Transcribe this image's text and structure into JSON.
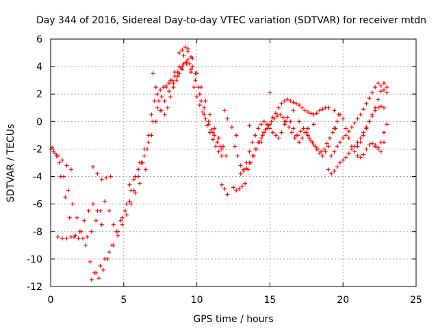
{
  "chart_data": {
    "type": "scatter",
    "title": "Day 344 of 2016, Sidereal Day-to-day VTEC variation (SDTVAR) for receiver mtdn",
    "xlabel": "GPS time / hours",
    "ylabel": "SDTVAR / TECUs",
    "xlim": [
      0,
      25
    ],
    "ylim": [
      -12,
      6
    ],
    "x_ticks": [
      "0",
      "5",
      "10",
      "15",
      "20",
      "25"
    ],
    "y_ticks": [
      "-12",
      "-10",
      "-8",
      "-6",
      "-4",
      "-2",
      "0",
      "2",
      "4",
      "6"
    ],
    "grid": true,
    "marker": "plus",
    "color": "#ff0000",
    "series": [
      {
        "x": [
          0.0,
          0.3,
          0.6,
          0.9,
          1.2,
          1.5,
          1.8,
          2.1,
          2.4,
          2.7,
          3.0,
          3.3,
          3.6,
          3.9,
          4.2,
          4.5,
          4.8,
          5.1,
          5.4,
          5.7,
          6.0,
          6.3,
          6.6,
          6.9,
          7.2,
          7.5,
          7.8,
          8.1,
          8.4,
          8.7,
          9.0,
          9.3,
          9.6,
          9.9,
          10.2,
          10.5,
          10.8,
          11.1,
          11.4,
          11.7,
          12.0
        ],
        "y": [
          -2.0,
          -2.3,
          -3.0,
          -4.0,
          -5.0,
          -6.0,
          -7.0,
          -8.0,
          -9.0,
          -10.2,
          -11.0,
          -11.4,
          -10.8,
          -10.0,
          -9.0,
          -8.0,
          -7.2,
          -6.5,
          -5.8,
          -5.0,
          -4.0,
          -3.0,
          -2.0,
          -1.0,
          0.0,
          0.8,
          1.5,
          2.2,
          2.8,
          3.3,
          3.8,
          4.2,
          3.8,
          3.0,
          2.0,
          1.0,
          0.0,
          -0.8,
          -1.5,
          -2.0,
          -2.5
        ]
      },
      {
        "x": [
          0.1,
          0.4,
          0.7,
          1.0,
          1.3,
          1.6,
          1.9,
          2.2,
          2.5,
          2.8,
          3.1,
          3.4,
          3.7,
          4.0,
          4.3,
          4.6,
          4.9,
          5.2,
          5.5,
          5.8,
          6.1,
          6.4,
          6.7,
          7.0,
          7.3,
          7.6,
          7.9,
          8.2,
          8.5,
          8.8,
          9.1,
          9.4,
          9.7,
          10.0,
          10.3,
          10.6,
          10.9,
          11.2,
          11.5,
          11.8
        ],
        "y": [
          -1.9,
          -2.5,
          -4.0,
          -5.5,
          -7.0,
          -8.4,
          -8.5,
          -8.5,
          -8.4,
          -8.0,
          -7.2,
          -6.5,
          -5.8,
          -6.5,
          -7.5,
          -8.0,
          -7.0,
          -6.0,
          -5.0,
          -4.0,
          -3.0,
          -2.0,
          -1.0,
          0.0,
          1.0,
          1.8,
          2.5,
          3.0,
          3.6,
          4.0,
          4.8,
          5.3,
          4.6,
          3.5,
          2.5,
          1.5,
          0.5,
          -0.5,
          -1.2,
          -1.8
        ]
      },
      {
        "x": [
          0.2,
          0.5,
          0.8,
          1.1,
          1.4
        ],
        "y": [
          -2.2,
          -2.5,
          -2.8,
          -3.2,
          -3.5
        ]
      },
      {
        "x": [
          2.9,
          3.2,
          3.5,
          3.8,
          4.1
        ],
        "y": [
          -3.3,
          -3.8,
          -4.2,
          -4.1,
          -4.0
        ]
      },
      {
        "x": [
          0.5,
          0.8,
          1.1,
          1.4,
          1.7,
          2.0,
          2.3,
          2.6,
          2.9,
          3.2,
          3.5
        ],
        "y": [
          -8.4,
          -8.5,
          -8.5,
          -8.4,
          -8.3,
          -8.0,
          -7.2,
          -6.5,
          -6.0,
          -6.5,
          -7.5
        ]
      },
      {
        "x": [
          2.8,
          3.1,
          3.4,
          3.7,
          4.0,
          4.3,
          4.6,
          4.9,
          5.2,
          5.5,
          5.8,
          6.1
        ],
        "y": [
          -11.5,
          -11.0,
          -10.5,
          -10.0,
          -9.5,
          -9.0,
          -8.3,
          -7.5,
          -6.8,
          -6.0,
          -5.2,
          -4.5
        ]
      },
      {
        "x": [
          6.5,
          6.7,
          6.9,
          7.1,
          7.3,
          7.5,
          7.7,
          7.9,
          8.1,
          8.3,
          8.5,
          8.7,
          8.9,
          9.1,
          9.3,
          9.5,
          9.7,
          9.9,
          10.1,
          10.3,
          10.5,
          10.7,
          10.9,
          11.1,
          11.3,
          11.5,
          11.7
        ],
        "y": [
          -3.5,
          -1.5,
          0.5,
          1.5,
          2.0,
          2.3,
          2.5,
          2.6,
          2.8,
          3.0,
          3.3,
          3.6,
          3.9,
          4.2,
          4.3,
          4.2,
          4.0,
          3.5,
          2.5,
          1.5,
          0.5,
          -0.3,
          -0.8,
          -1.3,
          -1.8,
          -2.2,
          -2.5
        ]
      },
      {
        "x": [
          7.0,
          7.2,
          7.4,
          7.6,
          7.8,
          8.0,
          8.2,
          8.4,
          8.6,
          8.8,
          9.0,
          9.2,
          9.4,
          9.6,
          9.8,
          10.0,
          10.2,
          10.4,
          10.6,
          10.8,
          11.0,
          11.2,
          11.4,
          11.6
        ],
        "y": [
          3.5,
          2.5,
          1.5,
          0.8,
          0.5,
          1.0,
          1.8,
          2.5,
          3.0,
          3.5,
          4.0,
          4.3,
          4.5,
          3.6,
          2.5,
          1.8,
          1.2,
          0.7,
          0.2,
          -0.2,
          -0.6,
          -1.0,
          -1.5,
          -1.8
        ]
      },
      {
        "x": [
          11.7,
          11.9,
          12.1
        ],
        "y": [
          -4.6,
          -4.9,
          -5.3
        ]
      },
      {
        "x": [
          11.9,
          12.1,
          12.4,
          12.7
        ],
        "y": [
          0.8,
          0.2,
          -0.4,
          -1.0
        ]
      },
      {
        "x": [
          12.5,
          12.7,
          12.9,
          13.1,
          13.3,
          13.5,
          13.7,
          13.9,
          14.1,
          14.3,
          14.5,
          14.7,
          14.9,
          15.1,
          15.3,
          15.5,
          15.7,
          15.9,
          16.1,
          16.3,
          16.5,
          16.7,
          16.9,
          17.1,
          17.3,
          17.5,
          17.7,
          17.9,
          18.1,
          18.3,
          18.5,
          18.7,
          18.9,
          19.1,
          19.3,
          19.5
        ],
        "y": [
          -4.8,
          -5.0,
          -4.9,
          -4.7,
          -4.5,
          -3.5,
          -3.0,
          -2.5,
          -2.0,
          -1.5,
          -1.0,
          -0.6,
          -0.3,
          0.0,
          0.2,
          0.4,
          0.5,
          0.3,
          0.0,
          -0.4,
          -0.8,
          -1.2,
          -1.0,
          -0.7,
          -0.5,
          -0.8,
          -1.2,
          -1.5,
          -1.8,
          -2.0,
          -2.2,
          -2.0,
          -1.6,
          -1.2,
          -0.8,
          -0.5
        ]
      },
      {
        "x": [
          12.6,
          12.8,
          13.0,
          13.2,
          13.4,
          13.6,
          13.8,
          14.0,
          14.2,
          14.4,
          14.6,
          14.8,
          15.0,
          15.2,
          15.4,
          15.6,
          15.8,
          16.0,
          16.2,
          16.4,
          16.6,
          16.8,
          17.0,
          17.2,
          17.4,
          17.6,
          17.8,
          18.0,
          18.2,
          18.4,
          18.6,
          18.8,
          19.0
        ],
        "y": [
          -1.8,
          -2.5,
          -3.2,
          -3.6,
          -3.4,
          -3.0,
          -2.5,
          -2.0,
          -1.5,
          -1.2,
          -0.8,
          -0.5,
          -0.2,
          0.3,
          0.6,
          1.0,
          1.3,
          1.5,
          1.6,
          1.5,
          1.4,
          1.3,
          1.2,
          1.0,
          0.8,
          0.7,
          0.6,
          0.5,
          0.6,
          0.8,
          0.9,
          1.0,
          1.0
        ]
      },
      {
        "x": [
          13.0,
          13.2,
          13.4,
          13.6,
          13.8,
          14.0,
          14.2,
          14.4,
          14.6,
          14.8,
          15.0,
          15.2,
          15.4,
          15.6,
          15.8,
          16.0,
          16.2,
          16.4,
          16.6,
          16.8,
          17.0,
          17.2,
          17.4,
          17.6,
          17.8,
          18.0,
          18.2,
          18.4,
          18.6,
          18.8,
          19.0
        ],
        "y": [
          -3.8,
          -3.5,
          -3.0,
          -2.2,
          -1.5,
          -1.0,
          -0.5,
          -0.2,
          0.0,
          -0.2,
          -0.5,
          -0.8,
          -1.0,
          -1.2,
          -0.8,
          -0.2,
          0.3,
          0.0,
          -0.5,
          -1.0,
          -1.5,
          -1.2,
          -0.8,
          -1.0,
          -1.4,
          -1.7,
          -2.0,
          -2.3,
          -2.5,
          -2.2,
          -1.8
        ]
      },
      {
        "x": [
          19.0,
          19.2,
          19.4,
          19.6,
          19.8,
          20.0,
          20.2,
          20.4,
          20.6,
          20.8,
          21.0,
          21.2,
          21.4,
          21.6,
          21.8,
          22.0,
          22.2,
          22.4,
          22.6,
          22.8
        ],
        "y": [
          -3.5,
          -3.8,
          -3.6,
          -3.3,
          -3.0,
          -2.8,
          -2.6,
          -2.3,
          -2.0,
          -1.8,
          -1.5,
          -1.2,
          -0.8,
          -0.4,
          0.0,
          0.4,
          0.8,
          1.0,
          1.1,
          1.0
        ]
      },
      {
        "x": [
          19.2,
          19.4,
          19.6,
          19.8,
          20.0,
          20.2,
          20.4,
          20.6,
          20.8,
          21.0,
          21.2,
          21.4,
          21.6,
          21.8,
          22.0,
          22.2,
          22.4,
          22.6,
          22.8,
          23.0
        ],
        "y": [
          -2.5,
          -2.2,
          -1.8,
          -1.5,
          -1.2,
          -1.0,
          -0.7,
          -0.4,
          -0.1,
          0.2,
          0.5,
          0.9,
          1.3,
          1.7,
          2.1,
          2.5,
          2.8,
          2.6,
          2.3,
          2.1
        ]
      },
      {
        "x": [
          19.4,
          19.6,
          19.8,
          20.0,
          20.2,
          20.4,
          20.6,
          20.8,
          21.0,
          21.2,
          21.4,
          21.6,
          21.8,
          22.0,
          22.2,
          22.4,
          22.6,
          22.8
        ],
        "y": [
          -0.5,
          0.0,
          0.5,
          0.2,
          -0.5,
          -1.2,
          -1.8,
          -2.2,
          -2.5,
          -2.6,
          -2.4,
          -2.0,
          -1.7,
          -1.6,
          -1.8,
          -2.0,
          -2.2,
          -1.5
        ]
      },
      {
        "x": [
          21.0,
          21.2,
          21.4,
          21.6,
          21.8,
          22.0,
          22.2,
          22.4,
          22.6,
          22.8,
          23.0
        ],
        "y": [
          -1.8,
          -1.5,
          -1.0,
          -0.5,
          0.0,
          0.5,
          1.0,
          1.6,
          2.2,
          2.8,
          2.5
        ]
      },
      {
        "x": [
          22.2,
          22.4,
          22.6,
          22.8,
          23.0
        ],
        "y": [
          -1.7,
          -1.9,
          -1.5,
          -0.8,
          -0.2
        ]
      },
      {
        "x": [
          13.6,
          14.0,
          14.4,
          15.0,
          15.6,
          16.0,
          16.6,
          17.0,
          17.6,
          18.0
        ],
        "y": [
          -0.3,
          -1.0,
          -1.5,
          2.1,
          1.0,
          0.0,
          0.8,
          0.0,
          -0.5,
          -0.2
        ]
      },
      {
        "x": [
          19.0,
          19.4,
          19.7
        ],
        "y": [
          1.0,
          0.8,
          0.5
        ]
      },
      {
        "x": [
          5.4,
          5.7,
          6.0,
          6.2,
          6.4
        ],
        "y": [
          -4.6,
          -4.2,
          -3.5,
          -3.0,
          -2.5
        ]
      },
      {
        "x": [
          8.8,
          9.0,
          9.2,
          9.4,
          9.6
        ],
        "y": [
          5.0,
          5.2,
          5.4,
          5.1,
          4.7
        ]
      }
    ]
  }
}
